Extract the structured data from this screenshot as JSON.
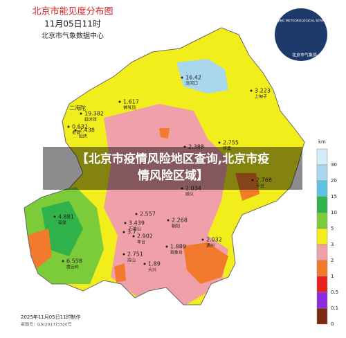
{
  "header": {
    "title": "北京市能见度分布图",
    "time": "11月05日11时",
    "source": "北京市气象数据中心"
  },
  "logo": {
    "text": "BEIJING METEOROLOGICAL SERVICE",
    "name": "北京市气象局"
  },
  "stations": [
    {
      "value": "16.42",
      "name": "汤河口"
    },
    {
      "value": "1.617",
      "name": "佛爷顶"
    },
    {
      "value": "3.223",
      "name": "上甸子"
    },
    {
      "value": "19.382",
      "name": "延庆张"
    },
    {
      "value": "0.632",
      "name": "老营"
    },
    {
      "value": "2.438",
      "name": "延庆"
    },
    {
      "value": "2.388"
    },
    {
      "value": "2.755",
      "name": "怀柔"
    },
    {
      "value": "2.768",
      "name": "平谷"
    },
    {
      "value": "2.034",
      "name": "顺义"
    },
    {
      "value": "4.881",
      "name": "斋堂"
    },
    {
      "value": "2.557"
    },
    {
      "value": "3.439",
      "name": "石景山"
    },
    {
      "value": "3.7"
    },
    {
      "value": "2.902",
      "name": "丰台"
    },
    {
      "value": "2.268",
      "name": "朝阳"
    },
    {
      "value": "1.889",
      "name": "观象台"
    },
    {
      "value": "2.032",
      "name": "通州"
    },
    {
      "value": "2.751",
      "name": "房山"
    },
    {
      "value": "6.558",
      "name": "霞云岭"
    },
    {
      "value": "1.89",
      "name": "大兴"
    }
  ],
  "place": "二海陀",
  "legend": {
    "unit": "km",
    "levels": [
      {
        "label": "30",
        "color": "#d6ecf7"
      },
      {
        "label": "20",
        "color": "#a9d8ee"
      },
      {
        "label": "15",
        "color": "#5ec2e0"
      },
      {
        "label": "10",
        "color": "#2fb34a"
      },
      {
        "label": "5",
        "color": "#7ccc3a"
      },
      {
        "label": "3",
        "color": "#f2ee1c"
      },
      {
        "label": "2",
        "color": "#f0a0a8"
      },
      {
        "label": "1",
        "color": "#f27a2c"
      },
      {
        "label": "0.5",
        "color": "#e82020"
      },
      {
        "label": "0.1",
        "color": "#8a2be2"
      },
      {
        "label": "0",
        "color": "#7a2a10"
      }
    ]
  },
  "footer": {
    "made": "2025年11月05日11时制作",
    "approval": "审图号：GS(2017)3320号"
  },
  "banner": {
    "lines": [
      "【北京市疫情风险地区查询,北京市疫",
      "情风险区域】"
    ]
  }
}
